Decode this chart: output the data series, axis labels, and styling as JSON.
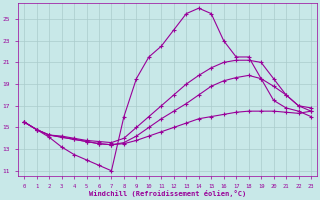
{
  "background_color": "#c8e8e8",
  "grid_color": "#aacccc",
  "line_color": "#990099",
  "marker": "+",
  "xlabel": "Windchill (Refroidissement éolien,°C)",
  "xlim": [
    -0.5,
    23.5
  ],
  "ylim": [
    10.5,
    26.5
  ],
  "yticks": [
    11,
    13,
    15,
    17,
    19,
    21,
    23,
    25
  ],
  "xticks": [
    0,
    1,
    2,
    3,
    4,
    5,
    6,
    7,
    8,
    9,
    10,
    11,
    12,
    13,
    14,
    15,
    16,
    17,
    18,
    19,
    20,
    21,
    22,
    23
  ],
  "series": [
    {
      "x": [
        0,
        1,
        2,
        3,
        4,
        5,
        6,
        7,
        8,
        9,
        10,
        11,
        12,
        13,
        14,
        15,
        16,
        17,
        18,
        19,
        20,
        21,
        22,
        23
      ],
      "y": [
        15.5,
        14.8,
        14.1,
        13.2,
        12.5,
        12.0,
        11.5,
        11.0,
        16.0,
        19.5,
        21.5,
        22.5,
        24.0,
        25.5,
        26.0,
        25.5,
        23.0,
        21.5,
        21.5,
        19.5,
        17.5,
        16.8,
        16.5,
        16.0
      ]
    },
    {
      "x": [
        0,
        1,
        2,
        3,
        4,
        5,
        6,
        7,
        8,
        9,
        10,
        11,
        12,
        13,
        14,
        15,
        16,
        17,
        18,
        19,
        20,
        21,
        22,
        23
      ],
      "y": [
        15.5,
        14.8,
        14.3,
        14.2,
        14.0,
        13.8,
        13.7,
        13.6,
        14.0,
        15.0,
        16.0,
        17.0,
        18.0,
        19.0,
        19.8,
        20.5,
        21.0,
        21.2,
        21.2,
        21.0,
        19.5,
        18.0,
        17.0,
        16.5
      ]
    },
    {
      "x": [
        0,
        1,
        2,
        3,
        4,
        5,
        6,
        7,
        8,
        9,
        10,
        11,
        12,
        13,
        14,
        15,
        16,
        17,
        18,
        19,
        20,
        21,
        22,
        23
      ],
      "y": [
        15.5,
        14.8,
        14.3,
        14.1,
        13.9,
        13.7,
        13.5,
        13.4,
        13.6,
        14.2,
        15.0,
        15.8,
        16.5,
        17.2,
        18.0,
        18.8,
        19.3,
        19.6,
        19.8,
        19.5,
        18.8,
        18.0,
        17.0,
        16.8
      ]
    },
    {
      "x": [
        0,
        1,
        2,
        3,
        4,
        5,
        6,
        7,
        8,
        9,
        10,
        11,
        12,
        13,
        14,
        15,
        16,
        17,
        18,
        19,
        20,
        21,
        22,
        23
      ],
      "y": [
        15.5,
        14.8,
        14.3,
        14.1,
        13.9,
        13.7,
        13.5,
        13.4,
        13.5,
        13.8,
        14.2,
        14.6,
        15.0,
        15.4,
        15.8,
        16.0,
        16.2,
        16.4,
        16.5,
        16.5,
        16.5,
        16.4,
        16.3,
        16.5
      ]
    }
  ]
}
